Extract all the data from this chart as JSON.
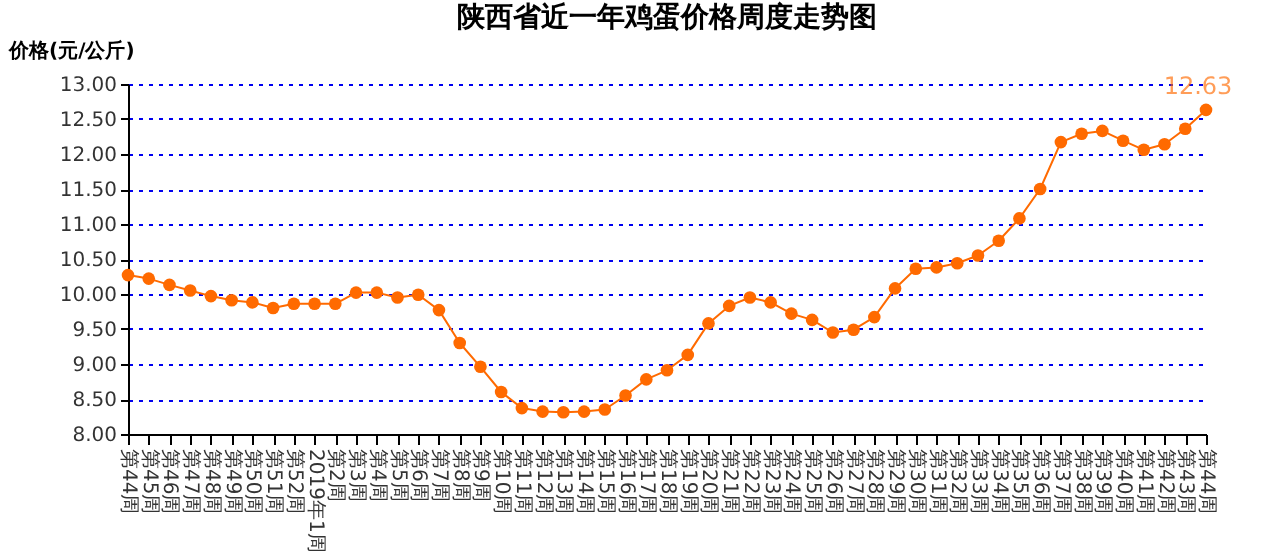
{
  "chart_data": {
    "type": "line",
    "title": "陕西省近一年鸡蛋价格周度走势图",
    "ylabel": "价格(元/公斤)",
    "categories": [
      "第44周",
      "第45周",
      "第46周",
      "第47周",
      "第48周",
      "第49周",
      "第50周",
      "第51周",
      "第52周",
      "2019年1周",
      "第2周",
      "第3周",
      "第4周",
      "第5周",
      "第6周",
      "第7周",
      "第8周",
      "第9周",
      "第10周",
      "第11周",
      "第12周",
      "第13周",
      "第14周",
      "第15周",
      "第16周",
      "第17周",
      "第18周",
      "第19周",
      "第20周",
      "第21周",
      "第22周",
      "第23周",
      "第24周",
      "第25周",
      "第26周",
      "第27周",
      "第28周",
      "第29周",
      "第30周",
      "第31周",
      "第32周",
      "第33周",
      "第34周",
      "第35周",
      "第36周",
      "第37周",
      "第38周",
      "第39周",
      "第40周",
      "第41周",
      "第42周",
      "第43周",
      "第44周"
    ],
    "series": [
      {
        "color": "#ff6a00",
        "values": [
          10.27,
          10.22,
          10.13,
          10.05,
          9.97,
          9.91,
          9.88,
          9.8,
          9.86,
          9.86,
          9.86,
          10.02,
          10.02,
          9.95,
          9.99,
          9.77,
          9.3,
          8.96,
          8.6,
          8.37,
          8.32,
          8.31,
          8.32,
          8.35,
          8.55,
          8.78,
          8.91,
          9.13,
          9.58,
          9.83,
          9.95,
          9.88,
          9.72,
          9.63,
          9.45,
          9.49,
          9.67,
          10.08,
          10.36,
          10.38,
          10.44,
          10.55,
          10.76,
          11.08,
          11.5,
          12.17,
          12.29,
          12.33,
          12.19,
          12.06,
          12.14,
          12.36,
          12.63
        ],
        "value_labels": [
          null,
          null,
          null,
          null,
          null,
          null,
          null,
          null,
          null,
          null,
          null,
          null,
          null,
          null,
          null,
          null,
          null,
          null,
          null,
          null,
          null,
          null,
          null,
          null,
          null,
          null,
          null,
          null,
          null,
          null,
          null,
          null,
          null,
          null,
          null,
          null,
          null,
          null,
          null,
          null,
          null,
          null,
          null,
          null,
          null,
          null,
          null,
          null,
          null,
          null,
          null,
          null,
          "12.63"
        ]
      }
    ],
    "ylim": [
      8,
      13
    ],
    "yticks": [
      {
        "value": 8,
        "label": "8.00"
      },
      {
        "value": 8.5,
        "label": "8.50"
      },
      {
        "value": 9,
        "label": "9.00"
      },
      {
        "value": 9.5,
        "label": "9.50"
      },
      {
        "value": 10,
        "label": "10.00"
      },
      {
        "value": 10.5,
        "label": "10.50"
      },
      {
        "value": 11,
        "label": "11.00"
      },
      {
        "value": 11.5,
        "label": "11.50"
      },
      {
        "value": 12,
        "label": "12.00"
      },
      {
        "value": 12.5,
        "label": "12.50"
      },
      {
        "value": 13,
        "label": "13.00"
      }
    ],
    "grid": "y",
    "marker": "circle",
    "line_style": "solid",
    "legend": false
  }
}
